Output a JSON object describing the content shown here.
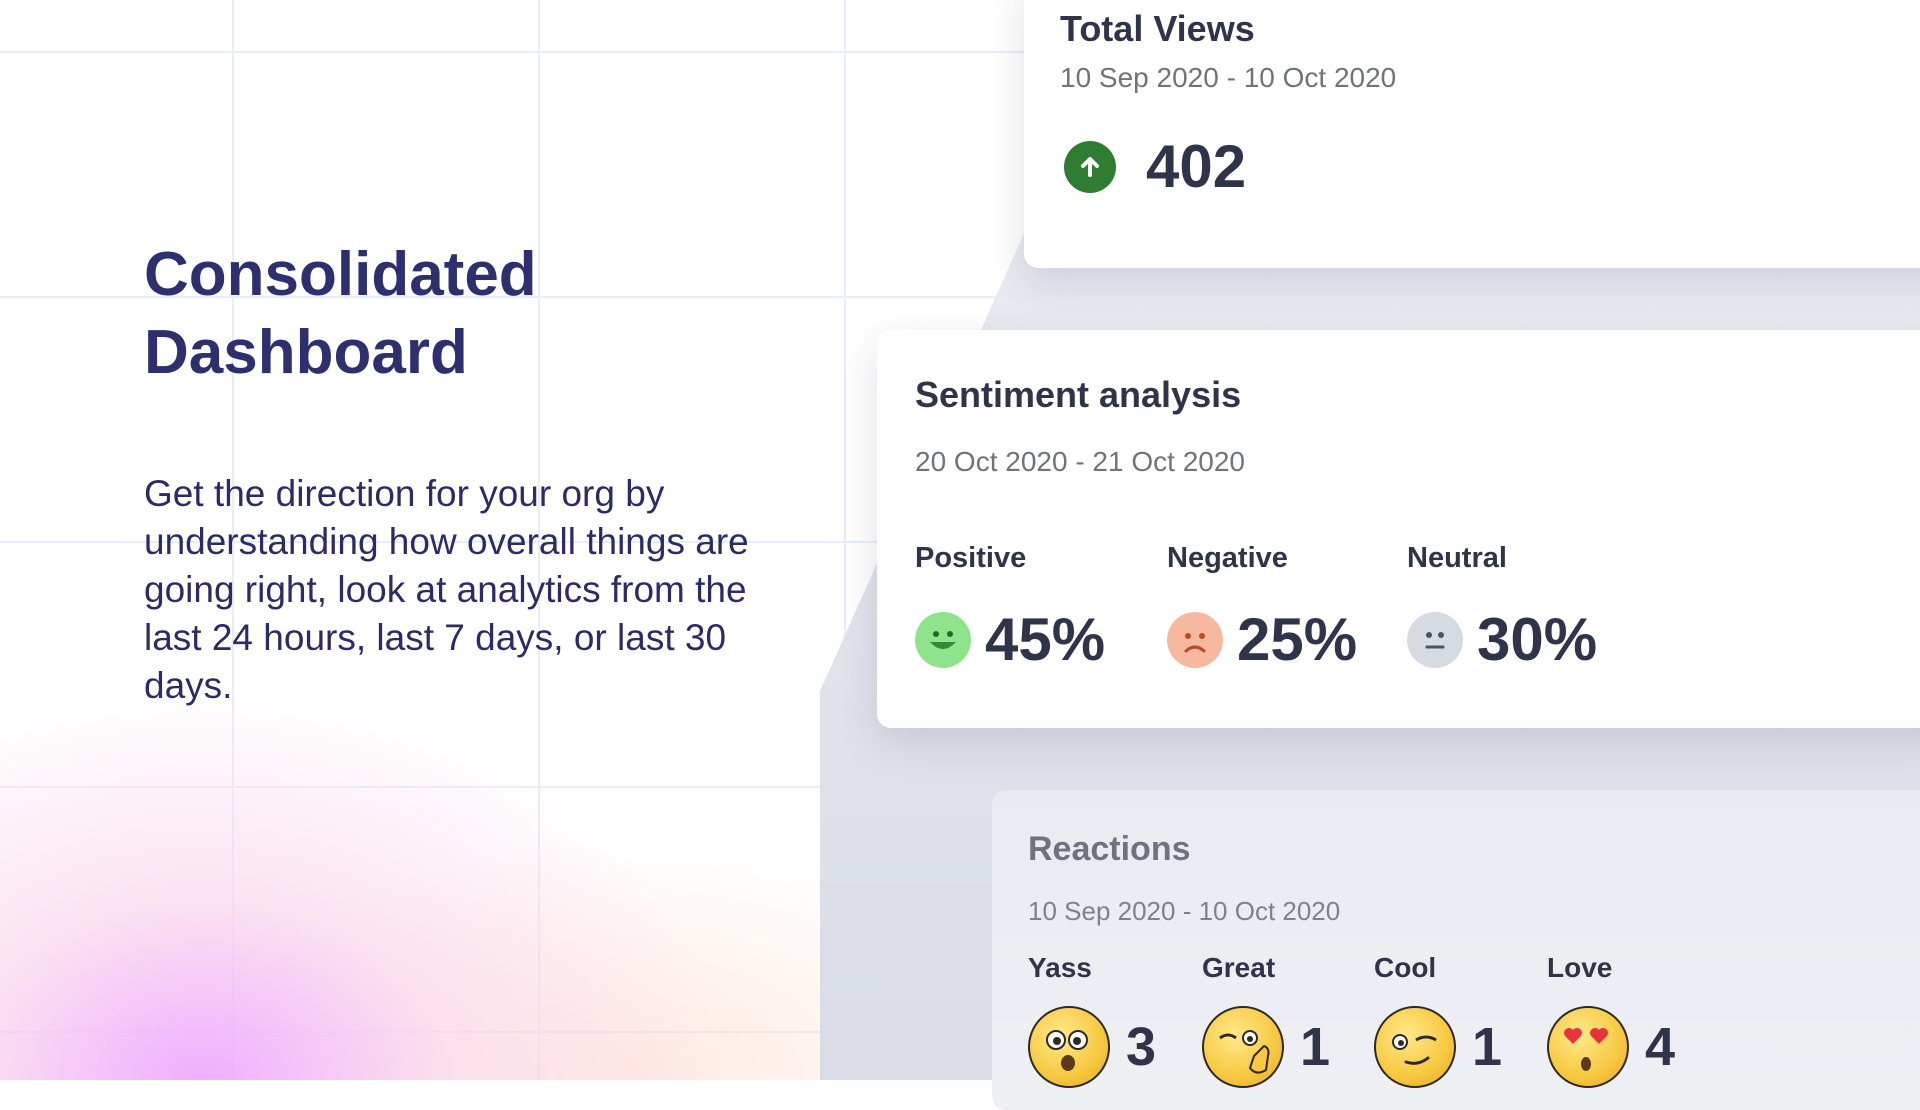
{
  "hero": {
    "title": "Consolidated Dashboard",
    "body": "Get the direction for your org by understanding how overall things are going right, look at analytics from the last 24 hours, last 7 days, or last 30 days."
  },
  "total_views": {
    "title": "Total Views",
    "date_range": "10 Sep 2020 - 10 Oct 2020",
    "value": "402",
    "trend_icon": "arrow-up-circle-icon",
    "trend_color": "#2f7d32"
  },
  "sentiment": {
    "title": "Sentiment analysis",
    "date_range": "20 Oct 2020 - 21 Oct 2020",
    "items": [
      {
        "label": "Positive",
        "value": "45%",
        "icon": "happy-face-icon",
        "color": "#8fe38d"
      },
      {
        "label": "Negative",
        "value": "25%",
        "icon": "sad-face-icon",
        "color": "#f6b9a0"
      },
      {
        "label": "Neutral",
        "value": "30%",
        "icon": "neutral-face-icon",
        "color": "#d6dbe3"
      }
    ]
  },
  "reactions": {
    "title": "Reactions",
    "date_range": "10 Sep 2020 - 10 Oct 2020",
    "items": [
      {
        "label": "Yass",
        "value": "3",
        "icon": "yass-emoji-icon"
      },
      {
        "label": "Great",
        "value": "1",
        "icon": "great-emoji-icon"
      },
      {
        "label": "Cool",
        "value": "1",
        "icon": "cool-emoji-icon"
      },
      {
        "label": "Love",
        "value": "4",
        "icon": "love-emoji-icon"
      }
    ]
  }
}
